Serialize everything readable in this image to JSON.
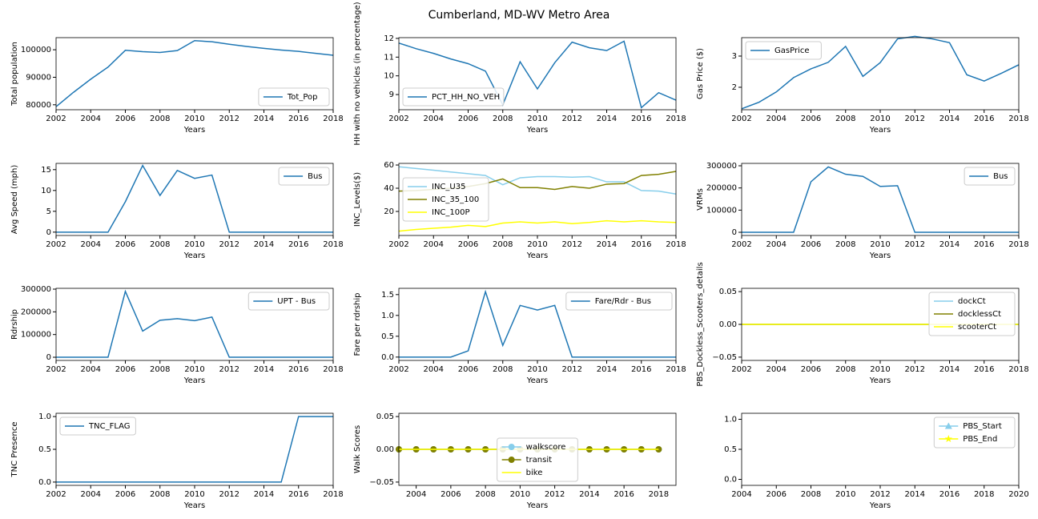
{
  "title": "Cumberland, MD-WV Metro Area",
  "chart_data": [
    {
      "type": "line",
      "xlabel": "Years",
      "ylabel": "Total population",
      "x": [
        2002,
        2003,
        2004,
        2005,
        2006,
        2007,
        2008,
        2009,
        2010,
        2011,
        2012,
        2013,
        2014,
        2015,
        2016,
        2017,
        2018
      ],
      "xlim": [
        2002,
        2018
      ],
      "xticks": [
        2002,
        2004,
        2006,
        2008,
        2010,
        2012,
        2014,
        2016,
        2018
      ],
      "ylim": [
        78200,
        104400
      ],
      "yticks": [
        80000,
        90000,
        100000
      ],
      "legend": "lower right",
      "series": [
        {
          "name": "Tot_Pop",
          "color": "#1f77b4",
          "values": [
            79300,
            84500,
            89300,
            93700,
            99800,
            99300,
            99000,
            99700,
            103300,
            102900,
            102000,
            101200,
            100500,
            99900,
            99400,
            98700,
            98000
          ]
        }
      ]
    },
    {
      "type": "line",
      "xlabel": "Years",
      "ylabel": "HH with no vehicles (in percentage)",
      "x": [
        2002,
        2003,
        2004,
        2005,
        2006,
        2007,
        2008,
        2009,
        2010,
        2011,
        2012,
        2013,
        2014,
        2015,
        2016,
        2017,
        2018
      ],
      "xlim": [
        2002,
        2018
      ],
      "xticks": [
        2002,
        2004,
        2006,
        2008,
        2010,
        2012,
        2014,
        2016,
        2018
      ],
      "ylim": [
        8.19,
        12.04
      ],
      "yticks": [
        9,
        10,
        11,
        12
      ],
      "legend": "lower left",
      "series": [
        {
          "name": "PCT_HH_NO_VEH",
          "color": "#1f77b4",
          "values": [
            11.75,
            11.45,
            11.2,
            10.9,
            10.65,
            10.25,
            8.45,
            10.75,
            9.3,
            10.7,
            11.8,
            11.5,
            11.35,
            11.85,
            8.3,
            9.1,
            8.7
          ]
        }
      ]
    },
    {
      "type": "line",
      "xlabel": "Years",
      "ylabel": "Gas Price ($)",
      "x": [
        2002,
        2003,
        2004,
        2005,
        2006,
        2007,
        2008,
        2009,
        2010,
        2011,
        2012,
        2013,
        2014,
        2015,
        2016,
        2017,
        2018
      ],
      "xlim": [
        2002,
        2018
      ],
      "xticks": [
        2002,
        2004,
        2006,
        2008,
        2010,
        2012,
        2014,
        2016,
        2018
      ],
      "ylim": [
        1.28,
        3.59
      ],
      "yticks": [
        2,
        3
      ],
      "legend": "upper left",
      "series": [
        {
          "name": "GasPrice",
          "color": "#1f77b4",
          "values": [
            1.31,
            1.52,
            1.85,
            2.31,
            2.59,
            2.8,
            3.31,
            2.35,
            2.79,
            3.55,
            3.63,
            3.55,
            3.43,
            2.4,
            2.2,
            2.45,
            2.72
          ]
        }
      ]
    },
    {
      "type": "line",
      "xlabel": "Years",
      "ylabel": "Avg Speed (mph)",
      "x": [
        2002,
        2003,
        2004,
        2005,
        2006,
        2007,
        2008,
        2009,
        2010,
        2011,
        2012,
        2013,
        2014,
        2015,
        2016,
        2017,
        2018
      ],
      "xlim": [
        2002,
        2018
      ],
      "xticks": [
        2002,
        2004,
        2006,
        2008,
        2010,
        2012,
        2014,
        2016,
        2018
      ],
      "ylim": [
        -0.8,
        16.5
      ],
      "yticks": [
        0,
        5,
        10,
        15
      ],
      "legend": "upper right",
      "series": [
        {
          "name": "Bus",
          "color": "#1f77b4",
          "values": [
            0,
            0,
            0,
            0,
            7.3,
            16,
            8.8,
            14.8,
            12.9,
            13.7,
            0,
            0,
            0,
            0,
            0,
            0,
            0
          ]
        }
      ]
    },
    {
      "type": "line",
      "xlabel": "Years",
      "ylabel": "INC_Levels($)",
      "x": [
        2002,
        2003,
        2004,
        2005,
        2006,
        2007,
        2008,
        2009,
        2010,
        2011,
        2012,
        2013,
        2014,
        2015,
        2016,
        2017,
        2018
      ],
      "xlim": [
        2002,
        2018
      ],
      "xticks": [
        2002,
        2004,
        2006,
        2008,
        2010,
        2012,
        2014,
        2016,
        2018
      ],
      "ylim": [
        -0.7,
        61.4
      ],
      "yticks": [
        20,
        40,
        60
      ],
      "legend": "center left",
      "series": [
        {
          "name": "INC_U35",
          "color": "#87ceeb",
          "values": [
            58.5,
            57,
            55.5,
            54,
            52.5,
            51,
            43,
            49,
            50,
            50,
            49.5,
            50,
            45.5,
            45.5,
            38,
            37.5,
            35
          ]
        },
        {
          "name": "INC_35_100",
          "color": "#808000",
          "values": [
            37.5,
            38,
            39,
            40,
            41.5,
            44,
            48,
            40.5,
            40.5,
            39,
            41.5,
            40,
            43.5,
            44,
            51,
            52,
            54.5
          ]
        },
        {
          "name": "INC_100P",
          "color": "#ffff00",
          "values": [
            3,
            4.5,
            5.5,
            6.5,
            8,
            7,
            10,
            11,
            10,
            11,
            9.5,
            10.5,
            12,
            11,
            12,
            11,
            10.5
          ]
        }
      ]
    },
    {
      "type": "line",
      "xlabel": "Years",
      "ylabel": "VRMs",
      "x": [
        2002,
        2003,
        2004,
        2005,
        2006,
        2007,
        2008,
        2009,
        2010,
        2011,
        2012,
        2013,
        2014,
        2015,
        2016,
        2017,
        2018
      ],
      "xlim": [
        2002,
        2018
      ],
      "xticks": [
        2002,
        2004,
        2006,
        2008,
        2010,
        2012,
        2014,
        2016,
        2018
      ],
      "ylim": [
        -14400,
        310800
      ],
      "yticks": [
        0,
        100000,
        200000,
        300000
      ],
      "legend": "upper right",
      "series": [
        {
          "name": "Bus",
          "color": "#1f77b4",
          "values": [
            0,
            0,
            0,
            0,
            228000,
            295000,
            262000,
            252000,
            207000,
            210000,
            0,
            0,
            0,
            0,
            0,
            0,
            0
          ]
        }
      ]
    },
    {
      "type": "line",
      "xlabel": "Years",
      "ylabel": "Rdrship",
      "x": [
        2002,
        2003,
        2004,
        2005,
        2006,
        2007,
        2008,
        2009,
        2010,
        2011,
        2012,
        2013,
        2014,
        2015,
        2016,
        2017,
        2018
      ],
      "xlim": [
        2002,
        2018
      ],
      "xticks": [
        2002,
        2004,
        2006,
        2008,
        2010,
        2012,
        2014,
        2016,
        2018
      ],
      "ylim": [
        -14000,
        303500
      ],
      "yticks": [
        0,
        100000,
        200000,
        300000
      ],
      "legend": "upper right",
      "series": [
        {
          "name": "UPT - Bus",
          "color": "#1f77b4",
          "values": [
            0,
            0,
            0,
            0,
            290000,
            115000,
            163000,
            170000,
            161000,
            177000,
            0,
            0,
            0,
            0,
            0,
            0,
            0
          ]
        }
      ]
    },
    {
      "type": "line",
      "xlabel": "Years",
      "ylabel": "Fare per rdrship",
      "x": [
        2002,
        2003,
        2004,
        2005,
        2006,
        2007,
        2008,
        2009,
        2010,
        2011,
        2012,
        2013,
        2014,
        2015,
        2016,
        2017,
        2018
      ],
      "xlim": [
        2002,
        2018
      ],
      "xticks": [
        2002,
        2004,
        2006,
        2008,
        2010,
        2012,
        2014,
        2016,
        2018
      ],
      "ylim": [
        -0.08,
        1.65
      ],
      "yticks": [
        {
          "value": 0,
          "label": "0.0"
        },
        0.5,
        {
          "value": 1,
          "label": "1.0"
        },
        1.5
      ],
      "legend": "upper right",
      "series": [
        {
          "name": "Fare/Rdr - Bus",
          "color": "#1f77b4",
          "values": [
            0,
            0,
            0,
            0,
            0.15,
            1.57,
            0.28,
            1.24,
            1.13,
            1.24,
            0,
            0,
            0,
            0,
            0,
            0,
            0
          ]
        }
      ]
    },
    {
      "type": "line",
      "xlabel": "Years",
      "ylabel": "PBS_Dockless_Scooters_details",
      "x": [
        2002,
        2003,
        2004,
        2005,
        2006,
        2007,
        2008,
        2009,
        2010,
        2011,
        2012,
        2013,
        2014,
        2015,
        2016,
        2017,
        2018
      ],
      "xlim": [
        2002,
        2018
      ],
      "xticks": [
        2002,
        2004,
        2006,
        2008,
        2010,
        2012,
        2014,
        2016,
        2018
      ],
      "ylim": [
        -0.055,
        0.055
      ],
      "yticks": [
        {
          "value": -0.05,
          "label": "−0.05"
        },
        {
          "value": 0,
          "label": "0.00"
        },
        {
          "value": 0.05,
          "label": "0.05"
        }
      ],
      "legend": "upper right",
      "series": [
        {
          "name": "dockCt",
          "color": "#87ceeb",
          "values": [
            0,
            0,
            0,
            0,
            0,
            0,
            0,
            0,
            0,
            0,
            0,
            0,
            0,
            0,
            0,
            0,
            0
          ]
        },
        {
          "name": "docklessCt",
          "color": "#808000",
          "values": [
            0,
            0,
            0,
            0,
            0,
            0,
            0,
            0,
            0,
            0,
            0,
            0,
            0,
            0,
            0,
            0,
            0
          ]
        },
        {
          "name": "scooterCt",
          "color": "#ffff00",
          "values": [
            0,
            0,
            0,
            0,
            0,
            0,
            0,
            0,
            0,
            0,
            0,
            0,
            0,
            0,
            0,
            0,
            0
          ]
        }
      ]
    },
    {
      "type": "line",
      "xlabel": "Years",
      "ylabel": "TNC Presence",
      "x": [
        2002,
        2003,
        2004,
        2005,
        2006,
        2007,
        2008,
        2009,
        2010,
        2011,
        2012,
        2013,
        2014,
        2015,
        2016,
        2017,
        2018
      ],
      "xlim": [
        2002,
        2018
      ],
      "xticks": [
        2002,
        2004,
        2006,
        2008,
        2010,
        2012,
        2014,
        2016,
        2018
      ],
      "ylim": [
        -0.05,
        1.05
      ],
      "yticks": [
        {
          "value": 0,
          "label": "0.0"
        },
        0.5,
        {
          "value": 1,
          "label": "1.0"
        }
      ],
      "legend": "upper left",
      "series": [
        {
          "name": "TNC_FLAG",
          "color": "#1f77b4",
          "values": [
            0,
            0,
            0,
            0,
            0,
            0,
            0,
            0,
            0,
            0,
            0,
            0,
            0,
            0,
            1,
            1,
            1
          ]
        }
      ]
    },
    {
      "type": "line",
      "xlabel": "Years",
      "ylabel": "Walk Scores",
      "x": [
        2003,
        2004,
        2005,
        2006,
        2007,
        2008,
        2009,
        2010,
        2011,
        2012,
        2013,
        2014,
        2015,
        2016,
        2017,
        2018
      ],
      "xlim": [
        2003,
        2019
      ],
      "xticks": [
        2004,
        2006,
        2008,
        2010,
        2012,
        2014,
        2016,
        2018
      ],
      "ylim": [
        -0.055,
        0.055
      ],
      "yticks": [
        {
          "value": -0.05,
          "label": "−0.05"
        },
        {
          "value": 0,
          "label": "0.00"
        },
        {
          "value": 0.05,
          "label": "0.05"
        }
      ],
      "legend": "lower center",
      "series": [
        {
          "name": "walkscore",
          "color": "#87ceeb",
          "marker": "o",
          "values": [
            0,
            0,
            0,
            0,
            0,
            0,
            0,
            0,
            0,
            0,
            0,
            0,
            0,
            0,
            0,
            0
          ]
        },
        {
          "name": "transit",
          "color": "#808000",
          "marker": "o",
          "values": [
            0,
            0,
            0,
            0,
            0,
            0,
            0,
            0,
            0,
            0,
            0,
            0,
            0,
            0,
            0,
            0
          ]
        },
        {
          "name": "bike",
          "color": "#ffff00",
          "values": [
            0,
            0,
            0,
            0,
            0,
            0,
            0,
            0,
            0,
            0,
            0,
            0,
            0,
            0,
            0,
            0
          ]
        }
      ]
    },
    {
      "type": "line",
      "xlabel": "Years",
      "x": [],
      "xlim": [
        2004,
        2020
      ],
      "xticks": [
        2004,
        2006,
        2008,
        2010,
        2012,
        2014,
        2016,
        2018,
        2020
      ],
      "ylim": [
        -0.1,
        1.1
      ],
      "yticks": [
        {
          "value": 0,
          "label": "0.0"
        },
        0.5,
        {
          "value": 1,
          "label": "1.0"
        }
      ],
      "legend": "upper right",
      "series": [
        {
          "name": "PBS_Start",
          "color": "#87ceeb",
          "marker": "^",
          "values": []
        },
        {
          "name": "PBS_End",
          "color": "#ffff00",
          "marker": "*",
          "values": []
        }
      ]
    }
  ]
}
